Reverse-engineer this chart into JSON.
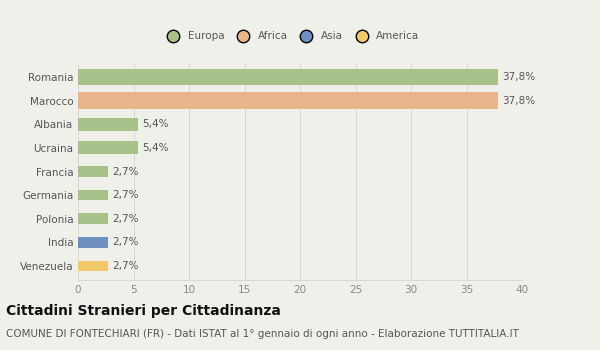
{
  "categories": [
    "Romania",
    "Marocco",
    "Albania",
    "Ucraina",
    "Francia",
    "Germania",
    "Polonia",
    "India",
    "Venezuela"
  ],
  "values": [
    37.8,
    37.8,
    5.4,
    5.4,
    2.7,
    2.7,
    2.7,
    2.7,
    2.7
  ],
  "labels": [
    "37,8%",
    "37,8%",
    "5,4%",
    "5,4%",
    "2,7%",
    "2,7%",
    "2,7%",
    "2,7%",
    "2,7%"
  ],
  "colors": [
    "#a8c18a",
    "#e8b48a",
    "#a8c18a",
    "#a8c18a",
    "#a8c18a",
    "#a8c18a",
    "#a8c18a",
    "#6e8fbf",
    "#f0c96a"
  ],
  "legend_labels": [
    "Europa",
    "Africa",
    "Asia",
    "America"
  ],
  "legend_colors": [
    "#a8c18a",
    "#e8b48a",
    "#6e8fbf",
    "#f0c96a"
  ],
  "title": "Cittadini Stranieri per Cittadinanza",
  "subtitle": "COMUNE DI FONTECHIARI (FR) - Dati ISTAT al 1° gennaio di ogni anno - Elaborazione TUTTITALIA.IT",
  "xlim": [
    0,
    40
  ],
  "xticks": [
    0,
    5,
    10,
    15,
    20,
    25,
    30,
    35,
    40
  ],
  "background_color": "#f0f0eb",
  "plot_bg_color": "#f0f0eb",
  "grid_color": "#d8d8d8",
  "title_fontsize": 10,
  "subtitle_fontsize": 7.5,
  "label_fontsize": 7.5,
  "tick_fontsize": 7.5
}
